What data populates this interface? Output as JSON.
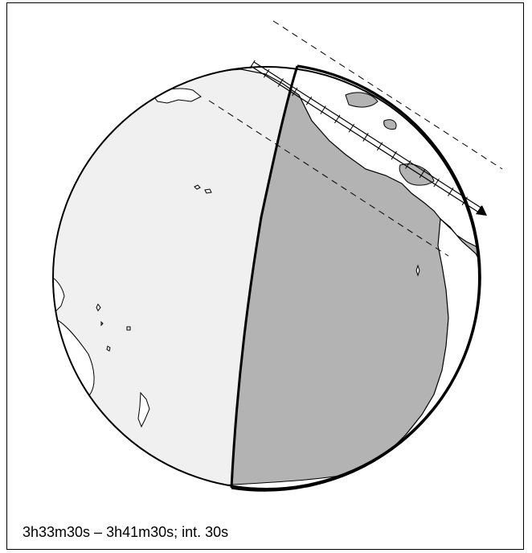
{
  "caption": "3h33m30s –  3h41m30s; int. 30s",
  "colors": {
    "night_side": "#b3b3b3",
    "day_side": "#f0f0f0",
    "land_fill": "#ffffff",
    "outline": "#000000"
  },
  "track": {
    "interval_marks": 17,
    "direction": "southeast"
  }
}
